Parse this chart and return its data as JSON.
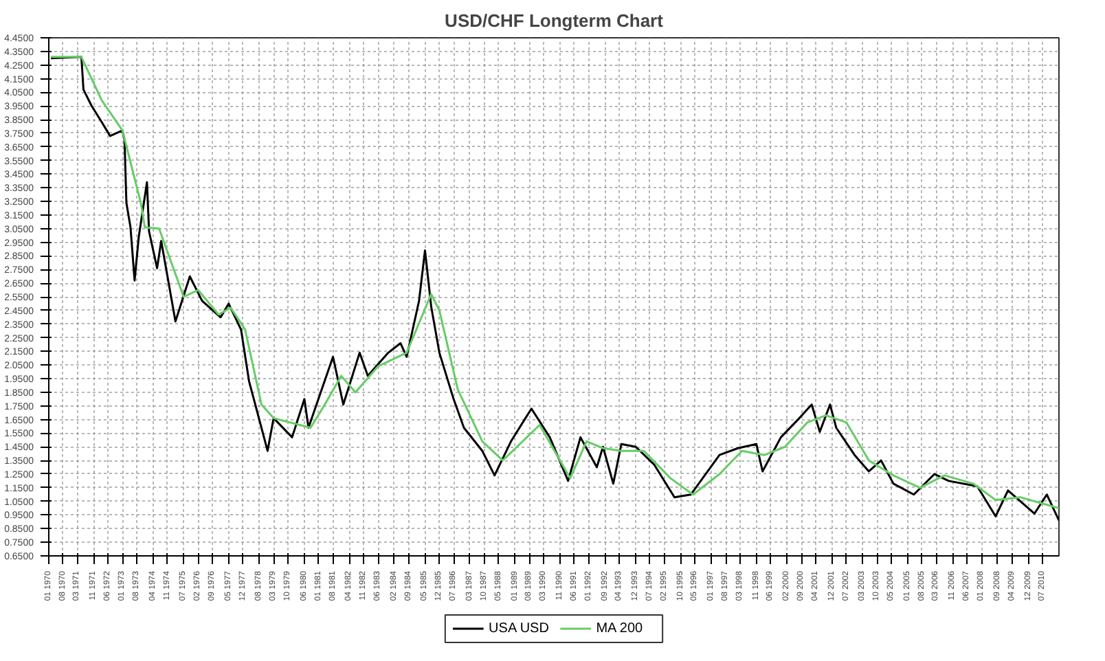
{
  "chart_data": {
    "type": "line",
    "title": "USD/CHF Longterm Chart",
    "series": [
      {
        "name": "USA USD",
        "color": "#000000",
        "x": [
          "1970-02",
          "1971-05",
          "1971-06",
          "1971-10",
          "1972-03",
          "1972-07",
          "1973-01",
          "1973-02",
          "1973-03",
          "1973-05",
          "1973-07",
          "1973-09",
          "1974-01",
          "1974-02",
          "1974-06",
          "1974-08",
          "1975-03",
          "1975-10",
          "1976-04",
          "1977-01",
          "1977-05",
          "1977-11",
          "1978-03",
          "1978-06",
          "1978-12",
          "1979-03",
          "1979-12",
          "1980-06",
          "1980-08",
          "1981-08",
          "1982-01",
          "1982-09",
          "1983-01",
          "1983-11",
          "1984-05",
          "1984-08",
          "1985-02",
          "1985-05",
          "1985-08",
          "1985-12",
          "1986-07",
          "1986-12",
          "1987-09",
          "1988-03",
          "1988-11",
          "1989-09",
          "1990-06",
          "1991-03",
          "1991-09",
          "1992-05",
          "1992-08",
          "1993-01",
          "1993-05",
          "1993-12",
          "1994-09",
          "1995-07",
          "1996-03",
          "1997-05",
          "1998-02",
          "1998-11",
          "1999-02",
          "1999-11",
          "2000-08",
          "2001-02",
          "2001-06",
          "2001-11",
          "2002-02",
          "2002-11",
          "2003-06",
          "2003-12",
          "2004-06",
          "2005-04",
          "2006-02",
          "2006-09",
          "2007-11",
          "2008-08",
          "2009-02",
          "2010-03",
          "2010-09",
          "2011-03"
        ],
        "values": [
          4.3,
          4.31,
          4.07,
          3.95,
          3.83,
          3.73,
          3.77,
          3.7,
          3.24,
          3.06,
          2.67,
          2.99,
          3.39,
          3.03,
          2.76,
          2.96,
          2.37,
          2.7,
          2.52,
          2.4,
          2.5,
          2.31,
          1.93,
          1.76,
          1.42,
          1.66,
          1.52,
          1.8,
          1.59,
          2.11,
          1.76,
          2.14,
          1.97,
          2.14,
          2.21,
          2.11,
          2.52,
          2.89,
          2.48,
          2.14,
          1.8,
          1.59,
          1.42,
          1.24,
          1.49,
          1.73,
          1.52,
          1.2,
          1.52,
          1.3,
          1.45,
          1.18,
          1.47,
          1.45,
          1.32,
          1.08,
          1.1,
          1.39,
          1.44,
          1.47,
          1.27,
          1.52,
          1.66,
          1.76,
          1.56,
          1.76,
          1.59,
          1.39,
          1.27,
          1.35,
          1.18,
          1.1,
          1.25,
          1.2,
          1.16,
          0.94,
          1.13,
          0.96,
          1.1,
          0.91
        ]
      },
      {
        "name": "MA 200",
        "color": "#66cc66",
        "x": [
          "1970-02",
          "1971-05",
          "1972-03",
          "1973-01",
          "1973-10",
          "1973-12",
          "1974-07",
          "1975-07",
          "1976-02",
          "1976-12",
          "1977-06",
          "1978-01",
          "1978-09",
          "1979-03",
          "1980-09",
          "1981-04",
          "1981-12",
          "1982-07",
          "1983-06",
          "1984-08",
          "1985-08",
          "1985-12",
          "1986-09",
          "1987-09",
          "1988-07",
          "1990-01",
          "1991-04",
          "1991-12",
          "1992-08",
          "1993-05",
          "1994-04",
          "1995-05",
          "1996-04",
          "1997-05",
          "1998-04",
          "1999-03",
          "2000-01",
          "2000-12",
          "2001-09",
          "2002-07",
          "2003-06",
          "2004-06",
          "2005-07",
          "2006-07",
          "2007-09",
          "2008-08",
          "2009-08",
          "2011-03"
        ],
        "values": [
          4.31,
          4.31,
          3.99,
          3.77,
          3.24,
          3.06,
          3.05,
          2.55,
          2.6,
          2.42,
          2.47,
          2.31,
          1.76,
          1.66,
          1.59,
          1.76,
          1.97,
          1.85,
          2.04,
          2.14,
          2.57,
          2.45,
          1.87,
          1.49,
          1.35,
          1.61,
          1.22,
          1.49,
          1.44,
          1.42,
          1.42,
          1.22,
          1.1,
          1.25,
          1.42,
          1.39,
          1.45,
          1.63,
          1.68,
          1.63,
          1.35,
          1.24,
          1.15,
          1.24,
          1.18,
          1.06,
          1.08,
          1.0
        ]
      }
    ],
    "xlim": [
      "1970-01",
      "2011-03"
    ],
    "xticks": [
      {
        "value": "1970-01",
        "label": "01 1970"
      },
      {
        "value": "1970-08",
        "label": "08 1970"
      },
      {
        "value": "1971-03",
        "label": "03 1971"
      },
      {
        "value": "1971-11",
        "label": "11 1971"
      },
      {
        "value": "1972-06",
        "label": "06 1972"
      },
      {
        "value": "1973-01",
        "label": "01 1973"
      },
      {
        "value": "1973-08",
        "label": "08 1973"
      },
      {
        "value": "1974-04",
        "label": "04 1974"
      },
      {
        "value": "1974-11",
        "label": "11 1974"
      },
      {
        "value": "1975-07",
        "label": "07 1975"
      },
      {
        "value": "1976-02",
        "label": "02 1976"
      },
      {
        "value": "1976-09",
        "label": "09 1976"
      },
      {
        "value": "1977-05",
        "label": "05 1977"
      },
      {
        "value": "1977-12",
        "label": "12 1977"
      },
      {
        "value": "1978-08",
        "label": "08 1978"
      },
      {
        "value": "1979-03",
        "label": "03 1979"
      },
      {
        "value": "1979-10",
        "label": "10 1979"
      },
      {
        "value": "1980-06",
        "label": "06 1980"
      },
      {
        "value": "1981-01",
        "label": "01 1981"
      },
      {
        "value": "1981-08",
        "label": "08 1981"
      },
      {
        "value": "1982-04",
        "label": "04 1982"
      },
      {
        "value": "1982-11",
        "label": "11 1982"
      },
      {
        "value": "1983-06",
        "label": "06 1983"
      },
      {
        "value": "1984-02",
        "label": "02 1984"
      },
      {
        "value": "1984-09",
        "label": "09 1984"
      },
      {
        "value": "1985-05",
        "label": "05 1985"
      },
      {
        "value": "1985-12",
        "label": "12 1985"
      },
      {
        "value": "1986-07",
        "label": "07 1986"
      },
      {
        "value": "1987-03",
        "label": "03 1987"
      },
      {
        "value": "1987-10",
        "label": "10 1987"
      },
      {
        "value": "1988-05",
        "label": "05 1988"
      },
      {
        "value": "1989-01",
        "label": "01 1989"
      },
      {
        "value": "1989-08",
        "label": "08 1989"
      },
      {
        "value": "1990-03",
        "label": "03 1990"
      },
      {
        "value": "1990-11",
        "label": "11 1990"
      },
      {
        "value": "1991-06",
        "label": "06 1991"
      },
      {
        "value": "1992-01",
        "label": "01 1992"
      },
      {
        "value": "1992-09",
        "label": "09 1992"
      },
      {
        "value": "1993-04",
        "label": "04 1993"
      },
      {
        "value": "1993-12",
        "label": "12 1993"
      },
      {
        "value": "1994-07",
        "label": "07 1994"
      },
      {
        "value": "1995-02",
        "label": "02 1995"
      },
      {
        "value": "1995-10",
        "label": "10 1995"
      },
      {
        "value": "1996-05",
        "label": "05 1996"
      },
      {
        "value": "1997-01",
        "label": "01 1997"
      },
      {
        "value": "1997-08",
        "label": "08 1997"
      },
      {
        "value": "1998-03",
        "label": "03 1998"
      },
      {
        "value": "1998-11",
        "label": "11 1998"
      },
      {
        "value": "1999-06",
        "label": "06 1999"
      },
      {
        "value": "2000-02",
        "label": "02 2000"
      },
      {
        "value": "2000-09",
        "label": "09 2000"
      },
      {
        "value": "2001-04",
        "label": "04 2001"
      },
      {
        "value": "2001-12",
        "label": "12 2001"
      },
      {
        "value": "2002-07",
        "label": "07 2002"
      },
      {
        "value": "2003-03",
        "label": "03 2003"
      },
      {
        "value": "2003-10",
        "label": "10 2003"
      },
      {
        "value": "2004-05",
        "label": "05 2004"
      },
      {
        "value": "2005-01",
        "label": "01 2005"
      },
      {
        "value": "2005-08",
        "label": "08 2005"
      },
      {
        "value": "2006-03",
        "label": "03 2006"
      },
      {
        "value": "2006-11",
        "label": "11 2006"
      },
      {
        "value": "2007-06",
        "label": "06 2007"
      },
      {
        "value": "2008-01",
        "label": "01 2008"
      },
      {
        "value": "2008-09",
        "label": "09 2008"
      },
      {
        "value": "2009-04",
        "label": "04 2009"
      },
      {
        "value": "2009-12",
        "label": "12 2009"
      },
      {
        "value": "2010-07",
        "label": "07 2010"
      }
    ],
    "ylim": [
      0.65,
      4.45
    ],
    "yticks": [
      {
        "value": 0.65,
        "label": "0.6500"
      },
      {
        "value": 0.75,
        "label": "0.7500"
      },
      {
        "value": 0.85,
        "label": "0.8500"
      },
      {
        "value": 0.95,
        "label": "0.9500"
      },
      {
        "value": 1.05,
        "label": "1.0500"
      },
      {
        "value": 1.15,
        "label": "1.1500"
      },
      {
        "value": 1.25,
        "label": "1.2500"
      },
      {
        "value": 1.35,
        "label": "1.3500"
      },
      {
        "value": 1.45,
        "label": "1.4500"
      },
      {
        "value": 1.55,
        "label": "1.5500"
      },
      {
        "value": 1.65,
        "label": "1.6500"
      },
      {
        "value": 1.75,
        "label": "1.7500"
      },
      {
        "value": 1.85,
        "label": "1.8500"
      },
      {
        "value": 1.95,
        "label": "1.9500"
      },
      {
        "value": 2.05,
        "label": "2.0500"
      },
      {
        "value": 2.15,
        "label": "2.1500"
      },
      {
        "value": 2.25,
        "label": "2.2500"
      },
      {
        "value": 2.35,
        "label": "2.3500"
      },
      {
        "value": 2.45,
        "label": "2.4500"
      },
      {
        "value": 2.55,
        "label": "2.5500"
      },
      {
        "value": 2.65,
        "label": "2.6500"
      },
      {
        "value": 2.75,
        "label": "2.7500"
      },
      {
        "value": 2.85,
        "label": "2.8500"
      },
      {
        "value": 2.95,
        "label": "2.9500"
      },
      {
        "value": 3.05,
        "label": "3.0500"
      },
      {
        "value": 3.15,
        "label": "3.1500"
      },
      {
        "value": 3.25,
        "label": "3.2500"
      },
      {
        "value": 3.35,
        "label": "3.3500"
      },
      {
        "value": 3.45,
        "label": "3.4500"
      },
      {
        "value": 3.55,
        "label": "3.5500"
      },
      {
        "value": 3.65,
        "label": "3.6500"
      },
      {
        "value": 3.75,
        "label": "3.7500"
      },
      {
        "value": 3.85,
        "label": "3.8500"
      },
      {
        "value": 3.95,
        "label": "3.9500"
      },
      {
        "value": 4.05,
        "label": "4.0500"
      },
      {
        "value": 4.15,
        "label": "4.1500"
      },
      {
        "value": 4.25,
        "label": "4.2500"
      },
      {
        "value": 4.35,
        "label": "4.3500"
      },
      {
        "value": 4.45,
        "label": "4.4500"
      }
    ],
    "grid": true,
    "legend": "bottom",
    "line_style": "solid"
  }
}
